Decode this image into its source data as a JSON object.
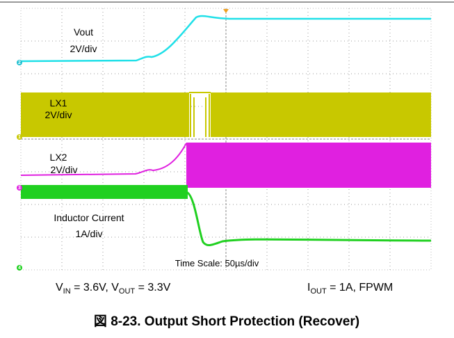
{
  "traces": {
    "vout": {
      "name": "Vout",
      "scale": "2V/div",
      "channel": "2"
    },
    "lx1": {
      "name": "LX1",
      "scale": "2V/div",
      "channel": "1"
    },
    "lx2": {
      "name": "LX2",
      "scale": "2V/div",
      "channel": "3"
    },
    "inductor": {
      "name": "Inductor Current",
      "scale": "1A/div",
      "channel": "4"
    }
  },
  "time_scale": "Time Scale: 50µs/div",
  "conditions": {
    "left": {
      "v1": "V",
      "v1_sub": "IN",
      "v1_rest": " = 3.6V, ",
      "v2": "V",
      "v2_sub": "OUT",
      "v2_rest": " = 3.3V"
    },
    "right": {
      "i": "I",
      "i_sub": "OUT",
      "i_rest": " = 1A, FPWM"
    }
  },
  "caption": "図 8-23. Output Short Protection (Recover)"
}
